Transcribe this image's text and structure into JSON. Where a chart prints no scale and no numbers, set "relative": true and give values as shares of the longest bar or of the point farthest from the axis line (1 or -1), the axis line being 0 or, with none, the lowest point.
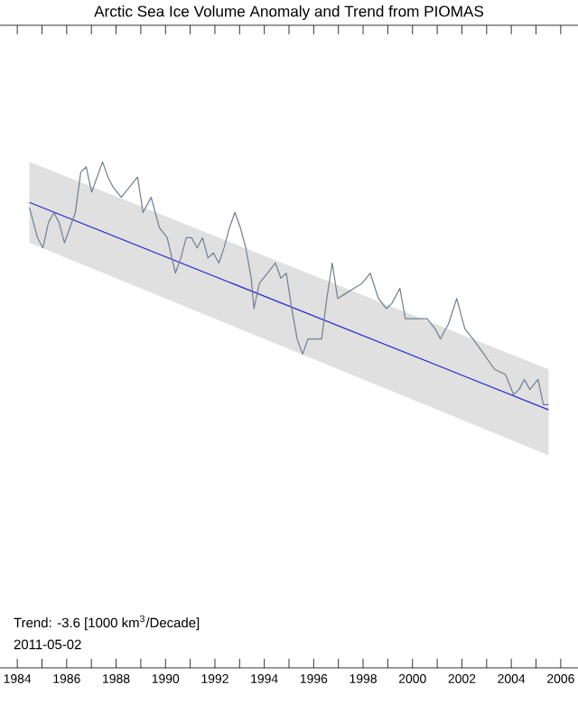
{
  "chart_data": {
    "type": "line",
    "title": "Arctic Sea Ice Volume Anomaly and Trend from PIOMAS",
    "relative": true,
    "xlim": [
      1983.3,
      2006.7
    ],
    "xticks": [
      1984,
      {
        "value": 1985,
        "label": null
      },
      1986,
      {
        "value": 1987,
        "label": null
      },
      1988,
      {
        "value": 1989,
        "label": null
      },
      1990,
      {
        "value": 1991,
        "label": null
      },
      1992,
      {
        "value": 1993,
        "label": null
      },
      1994,
      {
        "value": 1995,
        "label": null
      },
      1996,
      {
        "value": 1997,
        "label": null
      },
      1998,
      {
        "value": 1999,
        "label": null
      },
      2000,
      {
        "value": 2001,
        "label": null
      },
      2002,
      {
        "value": 2003,
        "label": null
      },
      2004,
      {
        "value": 2005,
        "label": null
      },
      2006
    ],
    "annotations": [
      "Trend: -3.6 [1000 km$^{3}$/Decade]",
      "2011-05-02"
    ],
    "series": [
      {
        "color": "#2b2bd0",
        "x": [
          1984.49,
          2005.51
        ],
        "values": [
          0.92,
          0.51
        ],
        "lower": [
          0.84,
          0.42
        ],
        "upper": [
          1.0,
          0.59
        ]
      },
      {
        "color": "#6f7f8f",
        "x": [
          1984.49,
          1984.82,
          1985.04,
          1985.26,
          1985.48,
          1985.69,
          1985.91,
          1986.13,
          1986.35,
          1986.57,
          1986.79,
          1987.01,
          1987.23,
          1987.45,
          1987.67,
          1987.88,
          1988.21,
          1988.54,
          1988.87,
          1989.09,
          1989.42,
          1989.75,
          1990.07,
          1990.4,
          1990.62,
          1990.84,
          1991.06,
          1991.28,
          1991.5,
          1991.72,
          1991.94,
          1992.16,
          1992.37,
          1992.59,
          1992.81,
          1993.03,
          1993.25,
          1993.47,
          1993.58,
          1993.8,
          1994.13,
          1994.45,
          1994.67,
          1994.89,
          1995.11,
          1995.33,
          1995.55,
          1995.77,
          1996.1,
          1996.32,
          1996.53,
          1996.75,
          1996.97,
          1997.3,
          1997.63,
          1997.96,
          1998.29,
          1998.62,
          1998.94,
          1999.16,
          1999.49,
          1999.71,
          2000.15,
          2000.59,
          2000.92,
          2001.13,
          2001.46,
          2001.79,
          2002.12,
          2002.45,
          2002.89,
          2003.32,
          2003.76,
          2004.09,
          2004.31,
          2004.53,
          2004.75,
          2005.08,
          2005.3,
          2005.51
        ],
        "values": [
          0.91,
          0.85,
          0.83,
          0.88,
          0.9,
          0.88,
          0.84,
          0.87,
          0.9,
          0.98,
          0.99,
          0.94,
          0.97,
          1.0,
          0.97,
          0.95,
          0.93,
          0.95,
          0.97,
          0.9,
          0.93,
          0.87,
          0.85,
          0.78,
          0.81,
          0.85,
          0.85,
          0.83,
          0.85,
          0.81,
          0.82,
          0.8,
          0.83,
          0.87,
          0.9,
          0.87,
          0.83,
          0.77,
          0.71,
          0.76,
          0.78,
          0.8,
          0.77,
          0.78,
          0.71,
          0.65,
          0.62,
          0.65,
          0.65,
          0.65,
          0.73,
          0.8,
          0.73,
          0.74,
          0.75,
          0.76,
          0.78,
          0.73,
          0.71,
          0.72,
          0.75,
          0.69,
          0.69,
          0.69,
          0.67,
          0.65,
          0.68,
          0.73,
          0.67,
          0.65,
          0.62,
          0.59,
          0.58,
          0.54,
          0.55,
          0.57,
          0.55,
          0.57,
          0.52,
          0.52
        ]
      }
    ]
  }
}
